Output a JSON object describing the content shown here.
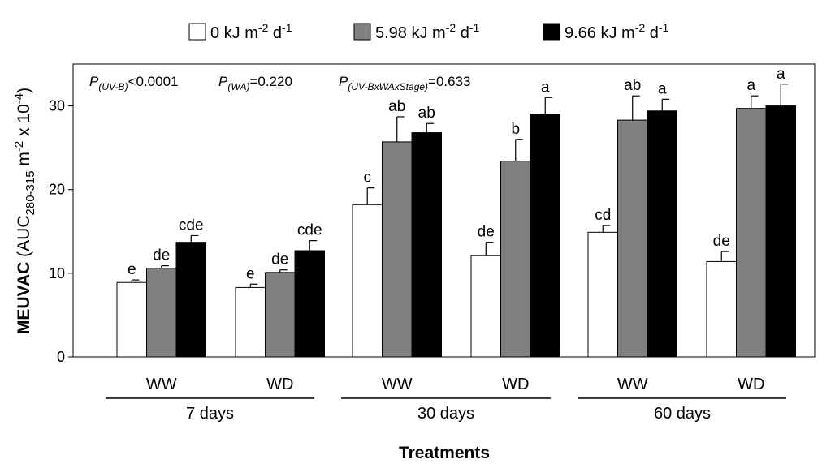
{
  "chart_data": {
    "type": "bar",
    "title": "",
    "xlabel": "Treatments",
    "ylabel": {
      "main": "MEUVAC",
      "open": " (AUC",
      "sub": "280-315",
      "mid": " m",
      "sup1": "-2",
      "mid2": " x 10",
      "sup2": "-4",
      "close": ")"
    },
    "ylim": [
      0,
      35
    ],
    "yticks": [
      0,
      10,
      20,
      30
    ],
    "grid": false,
    "legend_position": "top",
    "colors": [
      "#ffffff",
      "#808080",
      "#000000"
    ],
    "legend": [
      {
        "value": "0 kJ m",
        "sup1": "-2",
        "mid": " d",
        "sup2": "-1"
      },
      {
        "value": "5.98 kJ m",
        "sup1": "-2",
        "mid": " d",
        "sup2": "-1"
      },
      {
        "value": "9.66 kJ m",
        "sup1": "-2",
        "mid": " d",
        "sup2": "-1"
      }
    ],
    "categories": [
      "WW",
      "WD",
      "WW",
      "WD",
      "WW",
      "WD"
    ],
    "groups": [
      "7 days",
      "30 days",
      "60 days"
    ],
    "series": [
      {
        "values": [
          8.9,
          8.3,
          18.2,
          12.1,
          14.9,
          11.4
        ],
        "errors": [
          0.3,
          0.4,
          2.0,
          1.6,
          0.8,
          1.2
        ],
        "letters": [
          "e",
          "e",
          "c",
          "de",
          "cd",
          "de"
        ]
      },
      {
        "values": [
          10.6,
          10.1,
          25.7,
          23.4,
          28.3,
          29.7
        ],
        "errors": [
          0.3,
          0.3,
          3.0,
          2.6,
          2.9,
          1.5
        ],
        "letters": [
          "de",
          "de",
          "ab",
          "b",
          "ab",
          "a"
        ]
      },
      {
        "values": [
          13.7,
          12.7,
          26.8,
          29.0,
          29.4,
          30.0
        ],
        "errors": [
          0.8,
          1.2,
          1.1,
          2.0,
          1.4,
          2.6
        ],
        "letters": [
          "cde",
          "cde",
          "ab",
          "a",
          "a",
          "a"
        ]
      }
    ],
    "annotations": [
      {
        "p": "P",
        "sub": "(UV-B)",
        "rest": "<0.0001"
      },
      {
        "p": "P",
        "sub": "(WA)",
        "rest": "=0.220"
      },
      {
        "p": "P",
        "sub": "(UV-BxWAxStage)",
        "rest": "=0.633"
      }
    ]
  }
}
